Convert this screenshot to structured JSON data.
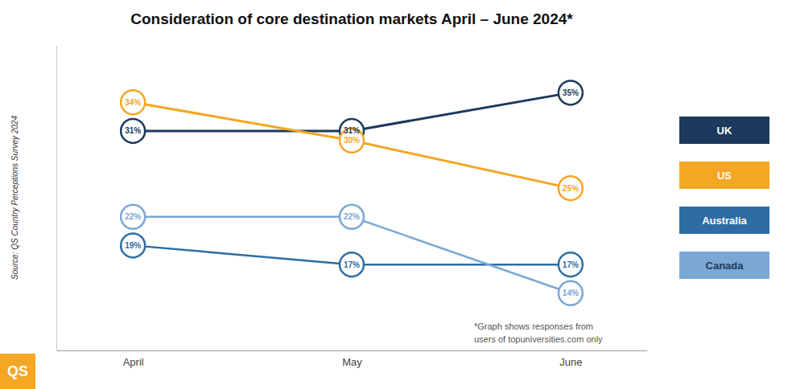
{
  "chart_data": {
    "type": "line",
    "title": "Consideration of core destination markets April – June 2024*",
    "categories": [
      "April",
      "May",
      "June"
    ],
    "series": [
      {
        "name": "UK",
        "color": "#1b3a5c",
        "values": [
          31,
          31,
          35
        ],
        "value_labels": [
          "31%",
          "31%",
          "35%"
        ]
      },
      {
        "name": "US",
        "color": "#f5a623",
        "values": [
          34,
          30,
          25
        ],
        "value_labels": [
          "34%",
          "30%",
          "25%"
        ]
      },
      {
        "name": "Australia",
        "color": "#2e6da4",
        "values": [
          19,
          17,
          17
        ],
        "value_labels": [
          "19%",
          "17%",
          "17%"
        ]
      },
      {
        "name": "Canada",
        "color": "#7ba7d4",
        "values": [
          22,
          22,
          14
        ],
        "value_labels": [
          "22%",
          "22%",
          "14%"
        ]
      }
    ],
    "ylim": [
      8,
      40
    ],
    "yticks": [],
    "tick_labels": "x",
    "data_labels": true,
    "marker": "circle",
    "legend": "right",
    "annotations": [
      "Source: QS Country Perceptions Survey 2024",
      "*Graph shows responses from\nusers of topuniversities.com only",
      "QS"
    ]
  }
}
